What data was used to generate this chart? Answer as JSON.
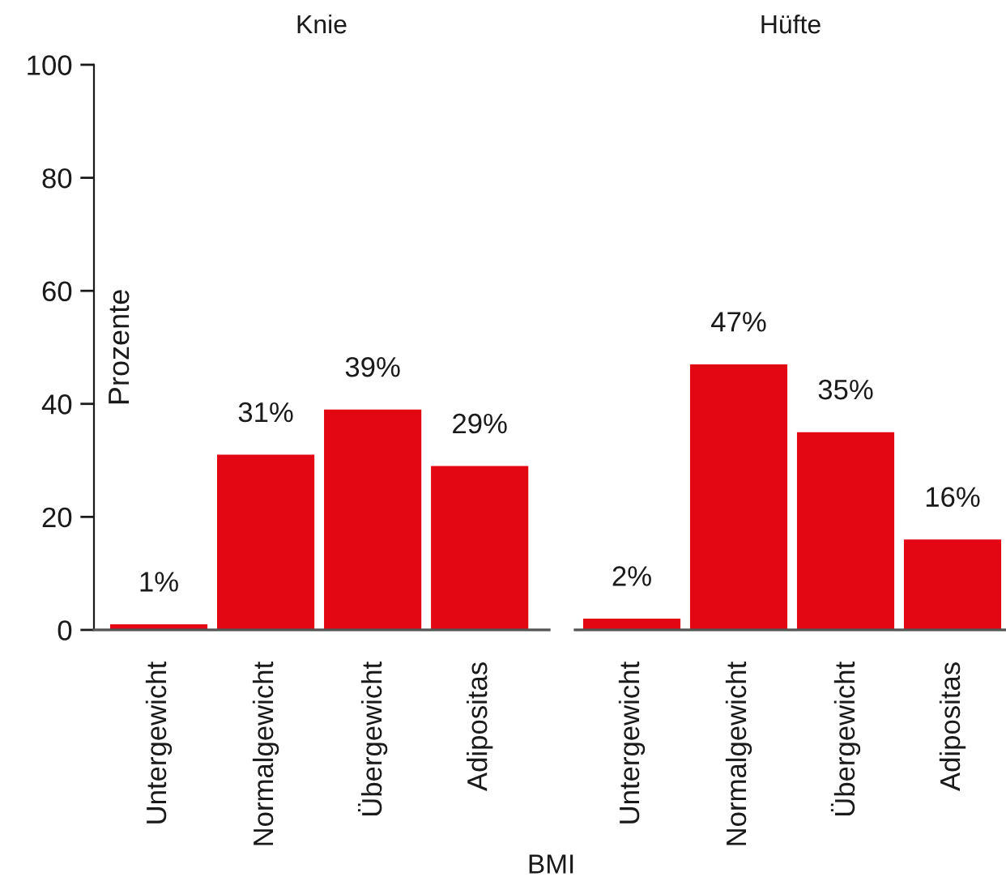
{
  "chart_data": [
    {
      "type": "bar",
      "title": "Knie",
      "categories": [
        "Untergewicht",
        "Normalgewicht",
        "Übergewicht",
        "Adipositas"
      ],
      "values": [
        1,
        31,
        39,
        29
      ],
      "value_labels": [
        "1%",
        "31%",
        "39%",
        "29%"
      ],
      "color": "#e30613",
      "ylim": [
        0,
        100
      ],
      "yticks": [
        0,
        20,
        40,
        60,
        80,
        100
      ],
      "ylabel": "Prozente",
      "xlabel": "BMI"
    },
    {
      "type": "bar",
      "title": "Hüfte",
      "categories": [
        "Untergewicht",
        "Normalgewicht",
        "Übergewicht",
        "Adipositas"
      ],
      "values": [
        2,
        47,
        35,
        16
      ],
      "value_labels": [
        "2%",
        "47%",
        "35%",
        "16%"
      ],
      "color": "#e30613",
      "ylim": [
        0,
        100
      ],
      "tick_labels": "x"
    }
  ]
}
